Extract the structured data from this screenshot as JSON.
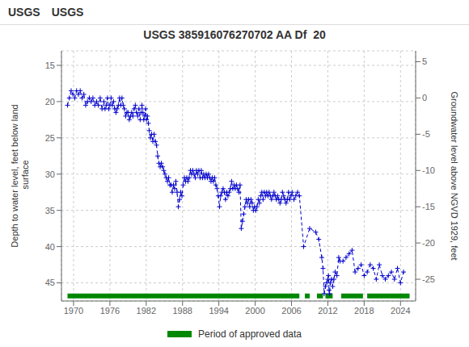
{
  "chart_data": {
    "type": "line",
    "title": "USGS 385916076270702 AA Df  20",
    "annotations": [
      "USGS",
      "USGS"
    ],
    "y_label": "Depth to water level, feet below land\n surface",
    "y2_label": "Groundwater level above NGVD 1929, feet",
    "xlim": [
      1968.0,
      2026.5
    ],
    "xticks": [
      1970,
      1976,
      1982,
      1988,
      1994,
      2000,
      2006,
      2012,
      2018,
      2024
    ],
    "ylim": [
      47.5,
      13.0
    ],
    "yticks": [
      15,
      20,
      25,
      30,
      35,
      40,
      45
    ],
    "y2lim": [
      -28.0,
      6.5
    ],
    "y2ticks": [
      5,
      0,
      -5,
      -10,
      -15,
      -20,
      -25
    ],
    "grid": true,
    "legend": "bottom",
    "x": [
      1969.0,
      1969.3,
      1969.6,
      1969.9,
      1970.2,
      1970.5,
      1970.8,
      1971.1,
      1971.4,
      1971.7,
      1972.0,
      1972.3,
      1972.6,
      1972.9,
      1973.2,
      1973.5,
      1973.8,
      1974.1,
      1974.4,
      1974.7,
      1975.0,
      1975.2,
      1975.4,
      1975.6,
      1975.8,
      1976.0,
      1976.2,
      1976.4,
      1976.6,
      1976.8,
      1977.0,
      1977.2,
      1977.4,
      1977.6,
      1977.8,
      1978.0,
      1978.2,
      1978.4,
      1978.6,
      1978.8,
      1979.0,
      1979.2,
      1979.4,
      1979.6,
      1979.8,
      1980.0,
      1980.2,
      1980.4,
      1980.6,
      1980.8,
      1981.0,
      1981.15,
      1981.3,
      1981.45,
      1981.6,
      1981.75,
      1981.9,
      1982.05,
      1982.2,
      1982.35,
      1982.5,
      1982.7,
      1982.9,
      1983.1,
      1983.3,
      1983.5,
      1983.7,
      1983.9,
      1984.1,
      1984.3,
      1984.5,
      1984.7,
      1984.9,
      1985.1,
      1985.3,
      1985.5,
      1985.7,
      1985.9,
      1986.1,
      1986.3,
      1986.5,
      1986.7,
      1986.9,
      1987.1,
      1987.3,
      1987.5,
      1987.7,
      1987.9,
      1988.1,
      1988.3,
      1988.5,
      1988.7,
      1988.9,
      1989.1,
      1989.3,
      1989.5,
      1989.7,
      1989.9,
      1990.1,
      1990.3,
      1990.5,
      1990.7,
      1990.9,
      1991.1,
      1991.3,
      1991.5,
      1991.7,
      1991.9,
      1992.1,
      1992.3,
      1992.5,
      1992.7,
      1992.9,
      1993.1,
      1993.3,
      1993.5,
      1993.7,
      1993.9,
      1994.1,
      1994.3,
      1994.5,
      1994.7,
      1994.9,
      1995.1,
      1995.3,
      1995.5,
      1995.7,
      1995.9,
      1996.1,
      1996.3,
      1996.5,
      1996.7,
      1996.9,
      1997.1,
      1997.3,
      1997.5,
      1997.7,
      1997.9,
      1998.1,
      1998.3,
      1998.5,
      1998.7,
      1998.9,
      1999.1,
      1999.3,
      1999.5,
      1999.7,
      1999.9,
      2000.1,
      2000.3,
      2000.5,
      2000.7,
      2000.9,
      2001.1,
      2001.3,
      2001.5,
      2001.7,
      2001.9,
      2002.1,
      2002.3,
      2002.5,
      2002.7,
      2002.9,
      2003.1,
      2003.3,
      2003.5,
      2003.7,
      2003.9,
      2004.1,
      2004.3,
      2004.5,
      2004.7,
      2004.9,
      2005.1,
      2005.3,
      2005.5,
      2005.7,
      2005.9,
      2006.1,
      2006.4,
      2006.7,
      2007.0,
      2007.3,
      2008.0,
      2009.0,
      2010.0,
      2010.5,
      2011.0,
      2011.2,
      2011.4,
      2011.6,
      2011.8,
      2012.0,
      2012.1,
      2012.2,
      2012.3,
      2012.4,
      2012.6,
      2012.8,
      2013.0,
      2013.2,
      2013.5,
      2013.8,
      2014.0,
      2014.5,
      2015.0,
      2015.5,
      2016.0,
      2016.5,
      2017.0,
      2017.5,
      2018.0,
      2018.5,
      2019.0,
      2019.5,
      2020.0,
      2020.5,
      2021.0,
      2021.5,
      2022.0,
      2022.5,
      2023.0,
      2023.5,
      2024.0,
      2024.5
    ],
    "series": [
      {
        "color": "#0000cc",
        "line_style": "dashed",
        "marker": "plus",
        "values": [
          20.5,
          19.5,
          18.5,
          19.0,
          19.5,
          18.5,
          19.0,
          18.5,
          19.5,
          19.0,
          20.5,
          20.0,
          19.5,
          20.0,
          19.5,
          20.5,
          20.0,
          20.5,
          19.5,
          21.0,
          20.0,
          21.0,
          20.5,
          19.5,
          21.0,
          20.5,
          19.5,
          20.5,
          20.0,
          21.0,
          21.5,
          21.0,
          20.5,
          19.5,
          20.5,
          19.5,
          20.5,
          21.0,
          22.0,
          21.5,
          21.5,
          22.5,
          22.0,
          21.5,
          22.0,
          21.0,
          20.5,
          21.5,
          22.0,
          21.0,
          22.5,
          21.5,
          20.5,
          21.5,
          22.5,
          22.0,
          21.0,
          22.5,
          22.0,
          23.0,
          24.0,
          25.0,
          24.5,
          25.5,
          24.5,
          25.5,
          26.0,
          27.5,
          28.5,
          29.0,
          28.5,
          29.0,
          29.5,
          30.0,
          30.5,
          31.0,
          30.5,
          31.5,
          31.5,
          32.5,
          31.5,
          32.0,
          31.0,
          32.5,
          34.5,
          33.5,
          32.5,
          33.0,
          31.5,
          30.5,
          31.0,
          30.5,
          31.0,
          30.5,
          29.5,
          30.0,
          29.5,
          30.0,
          30.5,
          29.5,
          30.0,
          29.5,
          30.5,
          29.5,
          30.5,
          30.0,
          30.5,
          30.0,
          30.5,
          30.0,
          30.5,
          31.0,
          30.5,
          31.0,
          30.5,
          31.5,
          32.0,
          33.0,
          34.5,
          33.0,
          32.5,
          32.0,
          32.5,
          33.5,
          32.5,
          33.0,
          32.5,
          32.0,
          31.0,
          32.0,
          31.5,
          32.0,
          31.5,
          32.0,
          32.5,
          31.5,
          37.5,
          36.5,
          35.5,
          34.5,
          33.5,
          34.0,
          33.5,
          34.5,
          33.5,
          34.0,
          35.0,
          34.5,
          35.0,
          34.5,
          33.5,
          34.0,
          33.0,
          32.5,
          33.5,
          32.5,
          33.0,
          32.5,
          33.0,
          32.5,
          33.0,
          33.5,
          33.0,
          32.5,
          33.0,
          33.5,
          33.0,
          33.5,
          34.0,
          33.5,
          32.5,
          33.0,
          33.5,
          34.0,
          33.5,
          32.5,
          33.5,
          33.0,
          32.5,
          33.5,
          33.0,
          32.5,
          33.0,
          40.0,
          37.5,
          38.0,
          39.0,
          41.5,
          43.0,
          46.5,
          45.5,
          45.0,
          44.5,
          44.0,
          46.0,
          46.5,
          45.0,
          44.5,
          45.5,
          44.5,
          43.5,
          44.0,
          41.5,
          42.0,
          42.0,
          41.5,
          41.0,
          40.5,
          43.5,
          43.0,
          42.5,
          44.0,
          43.5,
          42.5,
          43.0,
          44.5,
          42.5,
          44.0,
          44.5,
          44.0,
          43.5,
          44.5,
          43.0,
          45.0,
          43.5
        ]
      },
      {
        "name": "Period of approved data",
        "type": "bar",
        "color": "#008800",
        "y": 46.8,
        "segments": [
          [
            1969.0,
            2007.3
          ],
          [
            2008.2,
            2009.0
          ],
          [
            2010.2,
            2011.2
          ],
          [
            2011.6,
            2012.8
          ],
          [
            2014.2,
            2017.8
          ],
          [
            2018.5,
            2025.5
          ]
        ]
      }
    ]
  }
}
